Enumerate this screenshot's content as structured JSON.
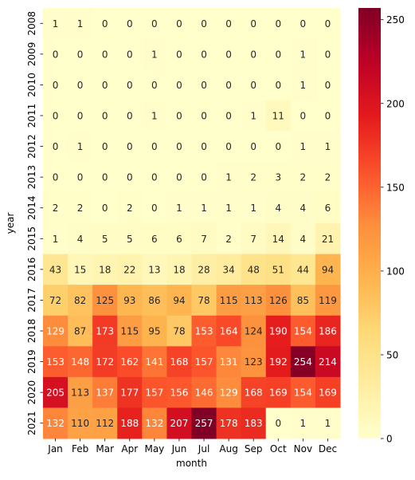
{
  "chart_data": {
    "type": "heatmap",
    "xlabel": "month",
    "ylabel": "year",
    "x_categories": [
      "Jan",
      "Feb",
      "Mar",
      "Apr",
      "May",
      "Jun",
      "Jul",
      "Aug",
      "Sep",
      "Oct",
      "Nov",
      "Dec"
    ],
    "y_categories": [
      "2008",
      "2009",
      "2010",
      "2011",
      "2012",
      "2013",
      "2014",
      "2015",
      "2016",
      "2017",
      "2018",
      "2019",
      "2020",
      "2021"
    ],
    "values": [
      [
        1,
        1,
        0,
        0,
        0,
        0,
        0,
        0,
        0,
        0,
        0,
        0
      ],
      [
        0,
        0,
        0,
        0,
        1,
        0,
        0,
        0,
        0,
        0,
        1,
        0
      ],
      [
        0,
        0,
        0,
        0,
        0,
        0,
        0,
        0,
        0,
        0,
        1,
        0
      ],
      [
        0,
        0,
        0,
        0,
        1,
        0,
        0,
        0,
        1,
        11,
        0,
        0
      ],
      [
        0,
        1,
        0,
        0,
        0,
        0,
        0,
        0,
        0,
        0,
        1,
        1
      ],
      [
        0,
        0,
        0,
        0,
        0,
        0,
        0,
        1,
        2,
        3,
        2,
        2
      ],
      [
        2,
        2,
        0,
        2,
        0,
        1,
        1,
        1,
        1,
        4,
        4,
        6
      ],
      [
        1,
        4,
        5,
        5,
        6,
        6,
        7,
        2,
        7,
        14,
        4,
        21
      ],
      [
        43,
        15,
        18,
        22,
        13,
        18,
        28,
        34,
        48,
        51,
        44,
        94
      ],
      [
        72,
        82,
        125,
        93,
        86,
        94,
        78,
        115,
        113,
        126,
        85,
        119
      ],
      [
        129,
        87,
        173,
        115,
        95,
        78,
        153,
        164,
        124,
        190,
        154,
        186
      ],
      [
        153,
        148,
        172,
        162,
        141,
        168,
        157,
        131,
        123,
        192,
        254,
        214
      ],
      [
        205,
        113,
        137,
        177,
        157,
        156,
        146,
        129,
        168,
        169,
        154,
        169
      ],
      [
        132,
        110,
        112,
        188,
        132,
        207,
        257,
        178,
        183,
        0,
        1,
        1
      ]
    ],
    "colormap": "YlOrRd",
    "vmin": 0,
    "vmax": 257,
    "colorbar_ticks": [
      0,
      50,
      100,
      150,
      200,
      250
    ],
    "annotate": true
  }
}
